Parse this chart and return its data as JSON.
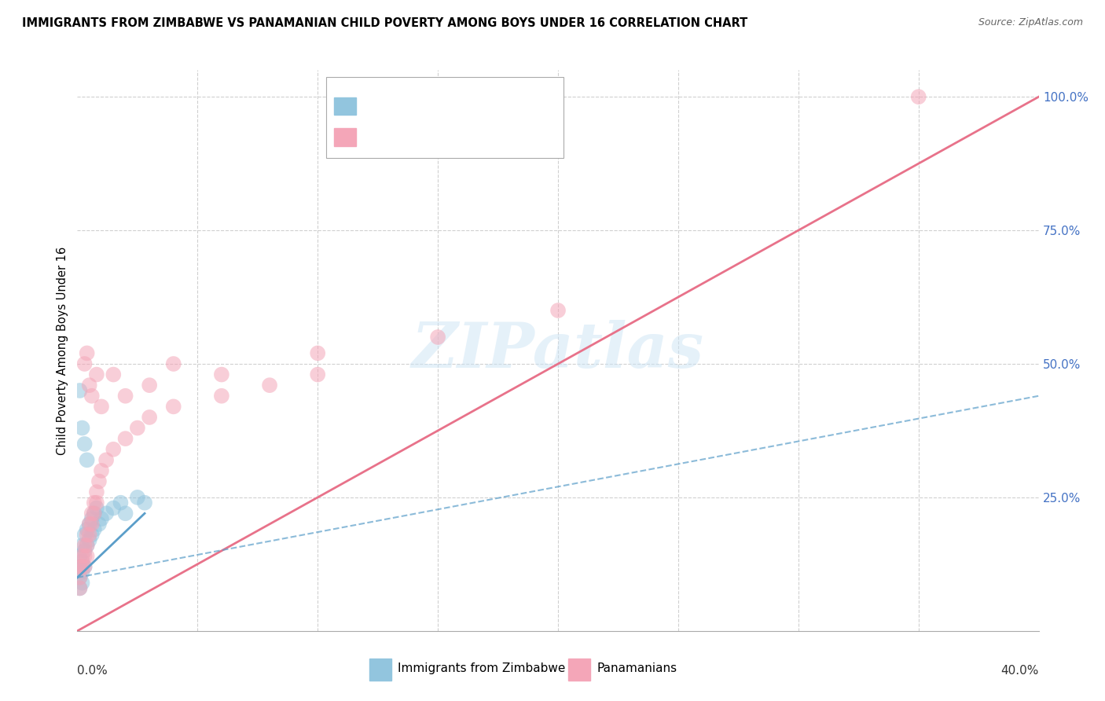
{
  "title": "IMMIGRANTS FROM ZIMBABWE VS PANAMANIAN CHILD POVERTY AMONG BOYS UNDER 16 CORRELATION CHART",
  "source": "Source: ZipAtlas.com",
  "ylabel": "Child Poverty Among Boys Under 16",
  "right_yticks": [
    0.0,
    0.25,
    0.5,
    0.75,
    1.0
  ],
  "right_yticklabels": [
    "",
    "25.0%",
    "50.0%",
    "75.0%",
    "100.0%"
  ],
  "legend_bottom_label1": "Immigrants from Zimbabwe",
  "legend_bottom_label2": "Panamanians",
  "blue_color": "#92c5de",
  "pink_color": "#f4a6b8",
  "blue_line_color": "#5b9ec9",
  "pink_line_color": "#e8728a",
  "blue_scatter": [
    [
      0.001,
      0.14
    ],
    [
      0.001,
      0.12
    ],
    [
      0.001,
      0.1
    ],
    [
      0.001,
      0.08
    ],
    [
      0.002,
      0.16
    ],
    [
      0.002,
      0.13
    ],
    [
      0.002,
      0.11
    ],
    [
      0.002,
      0.09
    ],
    [
      0.003,
      0.18
    ],
    [
      0.003,
      0.15
    ],
    [
      0.003,
      0.12
    ],
    [
      0.004,
      0.19
    ],
    [
      0.004,
      0.16
    ],
    [
      0.005,
      0.2
    ],
    [
      0.005,
      0.17
    ],
    [
      0.006,
      0.21
    ],
    [
      0.006,
      0.18
    ],
    [
      0.007,
      0.22
    ],
    [
      0.007,
      0.19
    ],
    [
      0.008,
      0.23
    ],
    [
      0.009,
      0.2
    ],
    [
      0.01,
      0.21
    ],
    [
      0.012,
      0.22
    ],
    [
      0.015,
      0.23
    ],
    [
      0.018,
      0.24
    ],
    [
      0.02,
      0.22
    ],
    [
      0.025,
      0.25
    ],
    [
      0.028,
      0.24
    ],
    [
      0.001,
      0.45
    ],
    [
      0.002,
      0.38
    ],
    [
      0.003,
      0.35
    ],
    [
      0.004,
      0.32
    ]
  ],
  "pink_scatter": [
    [
      0.001,
      0.12
    ],
    [
      0.001,
      0.1
    ],
    [
      0.001,
      0.08
    ],
    [
      0.002,
      0.14
    ],
    [
      0.002,
      0.12
    ],
    [
      0.003,
      0.16
    ],
    [
      0.003,
      0.14
    ],
    [
      0.003,
      0.12
    ],
    [
      0.004,
      0.18
    ],
    [
      0.004,
      0.16
    ],
    [
      0.004,
      0.14
    ],
    [
      0.005,
      0.2
    ],
    [
      0.005,
      0.18
    ],
    [
      0.006,
      0.22
    ],
    [
      0.006,
      0.2
    ],
    [
      0.007,
      0.24
    ],
    [
      0.007,
      0.22
    ],
    [
      0.008,
      0.26
    ],
    [
      0.008,
      0.24
    ],
    [
      0.009,
      0.28
    ],
    [
      0.01,
      0.3
    ],
    [
      0.012,
      0.32
    ],
    [
      0.015,
      0.34
    ],
    [
      0.02,
      0.36
    ],
    [
      0.025,
      0.38
    ],
    [
      0.03,
      0.4
    ],
    [
      0.04,
      0.42
    ],
    [
      0.06,
      0.44
    ],
    [
      0.08,
      0.46
    ],
    [
      0.1,
      0.48
    ],
    [
      0.003,
      0.5
    ],
    [
      0.004,
      0.52
    ],
    [
      0.005,
      0.46
    ],
    [
      0.006,
      0.44
    ],
    [
      0.008,
      0.48
    ],
    [
      0.01,
      0.42
    ],
    [
      0.015,
      0.48
    ],
    [
      0.02,
      0.44
    ],
    [
      0.03,
      0.46
    ],
    [
      0.04,
      0.5
    ],
    [
      0.06,
      0.48
    ],
    [
      0.1,
      0.52
    ],
    [
      0.15,
      0.55
    ],
    [
      0.2,
      0.6
    ],
    [
      0.35,
      1.0
    ]
  ],
  "xlim": [
    0.0,
    0.4
  ],
  "ylim": [
    0.0,
    1.05
  ],
  "pink_trend": [
    0.0,
    0.0,
    0.4,
    1.0
  ],
  "blue_trend_solid": [
    0.0,
    0.1,
    0.028,
    0.22
  ],
  "blue_trend_dashed": [
    0.0,
    0.1,
    0.4,
    0.44
  ],
  "watermark_text": "ZIPatlas",
  "background_color": "#ffffff",
  "grid_color": "#d0d0d0"
}
